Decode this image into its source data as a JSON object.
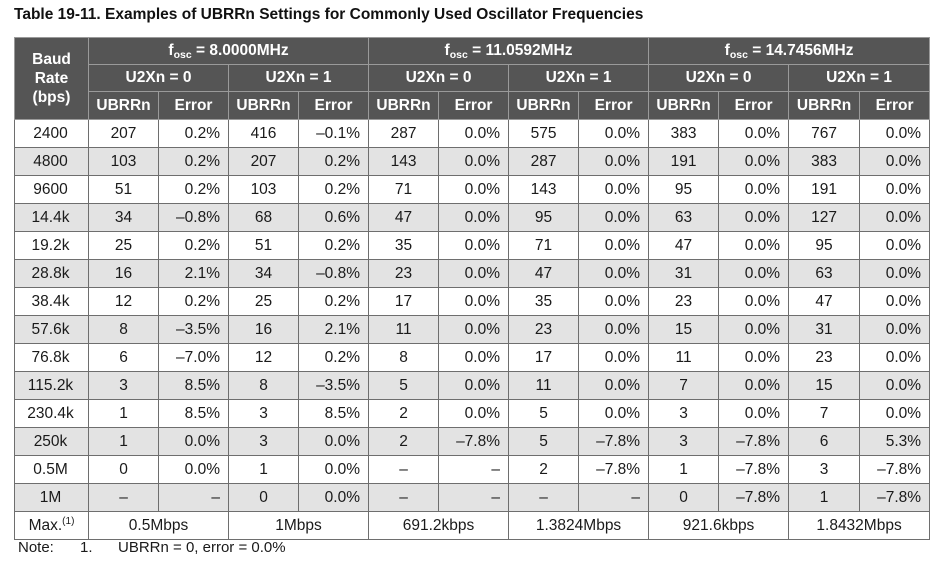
{
  "title": "Table 19-11. Examples of UBRRn Settings for Commonly Used Oscillator Frequencies",
  "header": {
    "baud_line1": "Baud",
    "baud_line2": "Rate",
    "baud_line3": "(bps)",
    "fosc_prefix": "f",
    "fosc_sub": "osc",
    "frequencies": [
      " = 8.0000MHz",
      " = 11.0592MHz",
      " = 14.7456MHz"
    ],
    "u2x0": "U2Xn = 0",
    "u2x1": "U2Xn = 1",
    "col_ubrr": "UBRRn",
    "col_error": "Error"
  },
  "rows": [
    {
      "baud": "2400",
      "c": [
        "207",
        "0.2%",
        "416",
        "–0.1%",
        "287",
        "0.0%",
        "575",
        "0.0%",
        "383",
        "0.0%",
        "767",
        "0.0%"
      ]
    },
    {
      "baud": "4800",
      "c": [
        "103",
        "0.2%",
        "207",
        "0.2%",
        "143",
        "0.0%",
        "287",
        "0.0%",
        "191",
        "0.0%",
        "383",
        "0.0%"
      ]
    },
    {
      "baud": "9600",
      "c": [
        "51",
        "0.2%",
        "103",
        "0.2%",
        "71",
        "0.0%",
        "143",
        "0.0%",
        "95",
        "0.0%",
        "191",
        "0.0%"
      ]
    },
    {
      "baud": "14.4k",
      "c": [
        "34",
        "–0.8%",
        "68",
        "0.6%",
        "47",
        "0.0%",
        "95",
        "0.0%",
        "63",
        "0.0%",
        "127",
        "0.0%"
      ]
    },
    {
      "baud": "19.2k",
      "c": [
        "25",
        "0.2%",
        "51",
        "0.2%",
        "35",
        "0.0%",
        "71",
        "0.0%",
        "47",
        "0.0%",
        "95",
        "0.0%"
      ]
    },
    {
      "baud": "28.8k",
      "c": [
        "16",
        "2.1%",
        "34",
        "–0.8%",
        "23",
        "0.0%",
        "47",
        "0.0%",
        "31",
        "0.0%",
        "63",
        "0.0%"
      ]
    },
    {
      "baud": "38.4k",
      "c": [
        "12",
        "0.2%",
        "25",
        "0.2%",
        "17",
        "0.0%",
        "35",
        "0.0%",
        "23",
        "0.0%",
        "47",
        "0.0%"
      ]
    },
    {
      "baud": "57.6k",
      "c": [
        "8",
        "–3.5%",
        "16",
        "2.1%",
        "11",
        "0.0%",
        "23",
        "0.0%",
        "15",
        "0.0%",
        "31",
        "0.0%"
      ]
    },
    {
      "baud": "76.8k",
      "c": [
        "6",
        "–7.0%",
        "12",
        "0.2%",
        "8",
        "0.0%",
        "17",
        "0.0%",
        "11",
        "0.0%",
        "23",
        "0.0%"
      ]
    },
    {
      "baud": "115.2k",
      "c": [
        "3",
        "8.5%",
        "8",
        "–3.5%",
        "5",
        "0.0%",
        "11",
        "0.0%",
        "7",
        "0.0%",
        "15",
        "0.0%"
      ]
    },
    {
      "baud": "230.4k",
      "c": [
        "1",
        "8.5%",
        "3",
        "8.5%",
        "2",
        "0.0%",
        "5",
        "0.0%",
        "3",
        "0.0%",
        "7",
        "0.0%"
      ]
    },
    {
      "baud": "250k",
      "c": [
        "1",
        "0.0%",
        "3",
        "0.0%",
        "2",
        "–7.8%",
        "5",
        "–7.8%",
        "3",
        "–7.8%",
        "6",
        "5.3%"
      ]
    },
    {
      "baud": "0.5M",
      "c": [
        "0",
        "0.0%",
        "1",
        "0.0%",
        "–",
        "–",
        "2",
        "–7.8%",
        "1",
        "–7.8%",
        "3",
        "–7.8%"
      ]
    },
    {
      "baud": "1M",
      "c": [
        "–",
        "–",
        "0",
        "0.0%",
        "–",
        "–",
        "–",
        "–",
        "0",
        "–7.8%",
        "1",
        "–7.8%"
      ]
    }
  ],
  "max_row": {
    "label": "Max.",
    "label_sup": "(1)",
    "values": [
      "0.5Mbps",
      "1Mbps",
      "691.2kbps",
      "1.3824Mbps",
      "921.6kbps",
      "1.8432Mbps"
    ]
  },
  "note": {
    "label": "Note:",
    "number": "1.",
    "text": "UBRRn = 0, error = 0.0%"
  }
}
